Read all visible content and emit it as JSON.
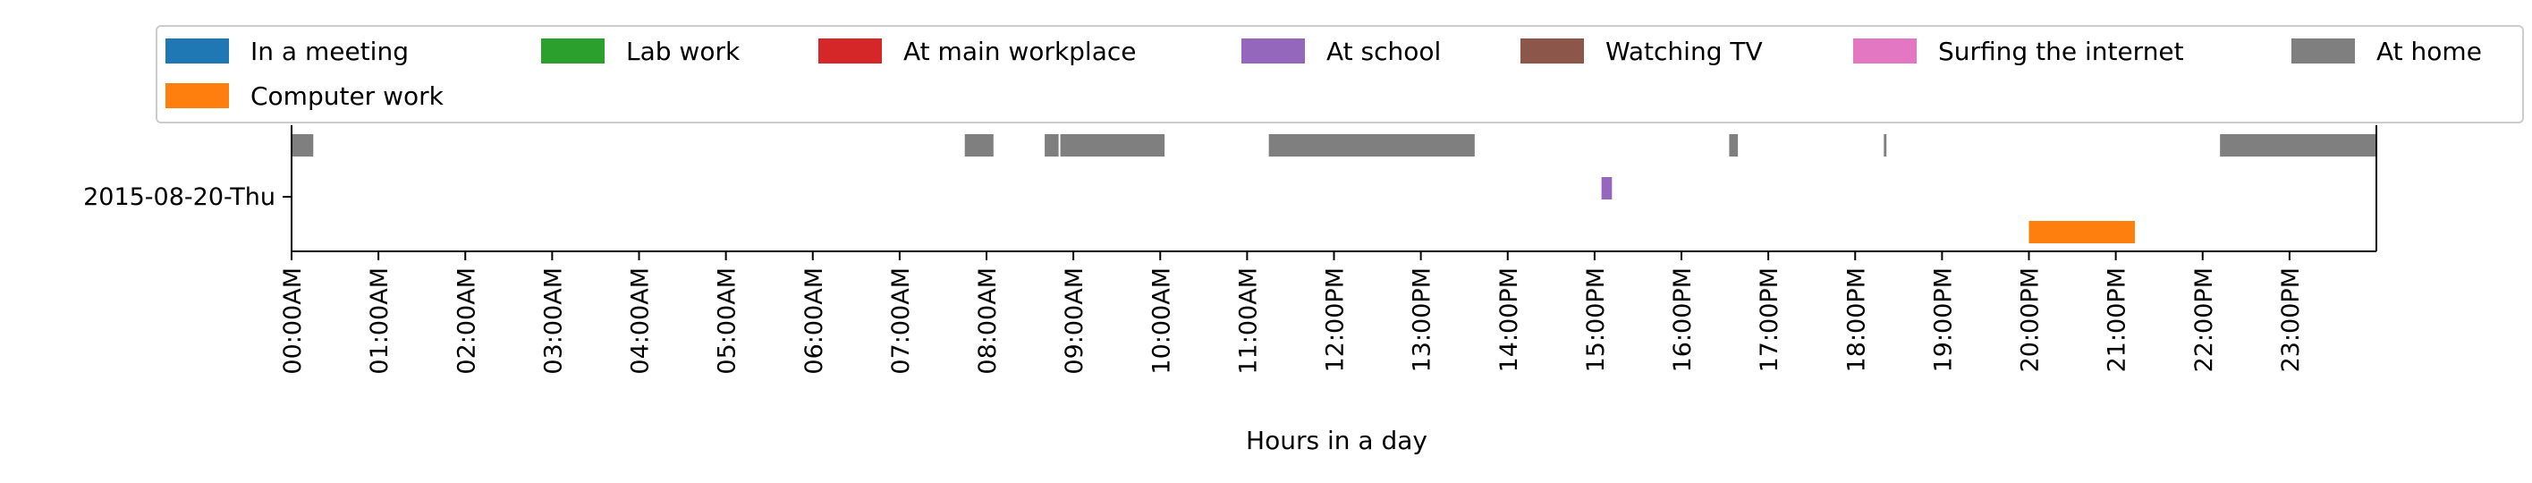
{
  "chart_data": {
    "type": "timeline",
    "title": "",
    "xlabel": "Hours in a day",
    "ylabel": "",
    "xlim": [
      0,
      24
    ],
    "x_tick_labels": [
      "00:00AM",
      "01:00AM",
      "02:00AM",
      "03:00AM",
      "04:00AM",
      "05:00AM",
      "06:00AM",
      "07:00AM",
      "08:00AM",
      "09:00AM",
      "10:00AM",
      "11:00AM",
      "12:00PM",
      "13:00PM",
      "14:00PM",
      "15:00PM",
      "16:00PM",
      "17:00PM",
      "18:00PM",
      "19:00PM",
      "20:00PM",
      "21:00PM",
      "22:00PM",
      "23:00PM"
    ],
    "y_label": "2015-08-20-Thu",
    "grid": false,
    "legend_position": "top",
    "legend": [
      {
        "name": "In a meeting",
        "color": "#1f77b4"
      },
      {
        "name": "Lab work",
        "color": "#2ca02c"
      },
      {
        "name": "At main workplace",
        "color": "#d62728"
      },
      {
        "name": "At school",
        "color": "#9467bd"
      },
      {
        "name": "Watching TV",
        "color": "#8c564b"
      },
      {
        "name": "Surfing the internet",
        "color": "#e377c2"
      },
      {
        "name": "At home",
        "color": "#7f7f7f"
      },
      {
        "name": "Computer work",
        "color": "#ff7f0e"
      }
    ],
    "series": [
      {
        "name": "At home",
        "color": "#7f7f7f",
        "lane": "top",
        "intervals": [
          [
            0.0,
            0.25
          ],
          [
            7.75,
            8.08
          ],
          [
            8.67,
            8.83
          ],
          [
            8.85,
            10.05
          ],
          [
            11.25,
            13.62
          ],
          [
            16.55,
            16.65
          ],
          [
            18.33,
            18.36
          ],
          [
            22.2,
            24.0
          ]
        ]
      },
      {
        "name": "At school",
        "color": "#9467bd",
        "lane": "middle",
        "intervals": [
          [
            15.08,
            15.2
          ]
        ]
      },
      {
        "name": "Computer work",
        "color": "#ff7f0e",
        "lane": "bottom",
        "intervals": [
          [
            20.0,
            21.22
          ]
        ]
      }
    ]
  }
}
